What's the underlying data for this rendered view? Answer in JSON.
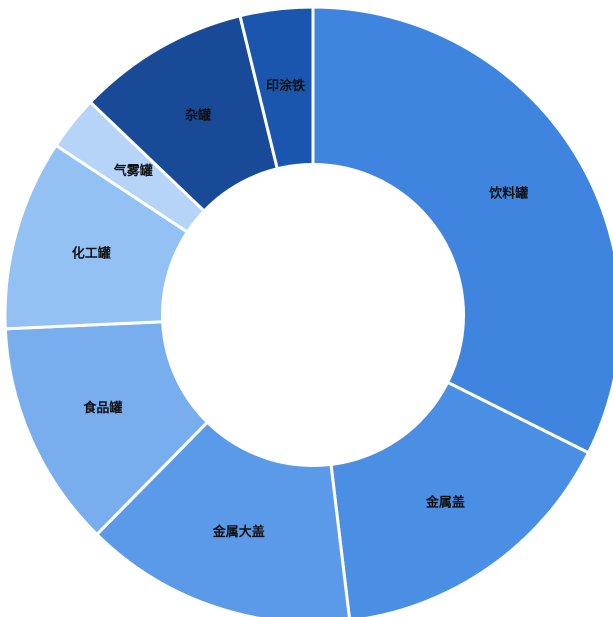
{
  "chart_data": {
    "type": "pie",
    "variant": "donut",
    "title": "",
    "legend": "none",
    "slices": [
      {
        "label": "饮料罐",
        "value": 34.0,
        "color": "#3f84df"
      },
      {
        "label": "金属盖",
        "value": 16.5,
        "color": "#4a8fe3"
      },
      {
        "label": "金属大盖",
        "value": 15.0,
        "color": "#5a9ae8"
      },
      {
        "label": "食品罐",
        "value": 12.5,
        "color": "#78aeee"
      },
      {
        "label": "化工罐",
        "value": 10.5,
        "color": "#94c1f3"
      },
      {
        "label": "气雾罐",
        "value": 3.0,
        "color": "#b5d4f8"
      },
      {
        "label": "杂罐",
        "value": 9.5,
        "color": "#184a97"
      },
      {
        "label": "印涂铁",
        "value": 4.0,
        "color": "#1a56ad"
      }
    ]
  }
}
